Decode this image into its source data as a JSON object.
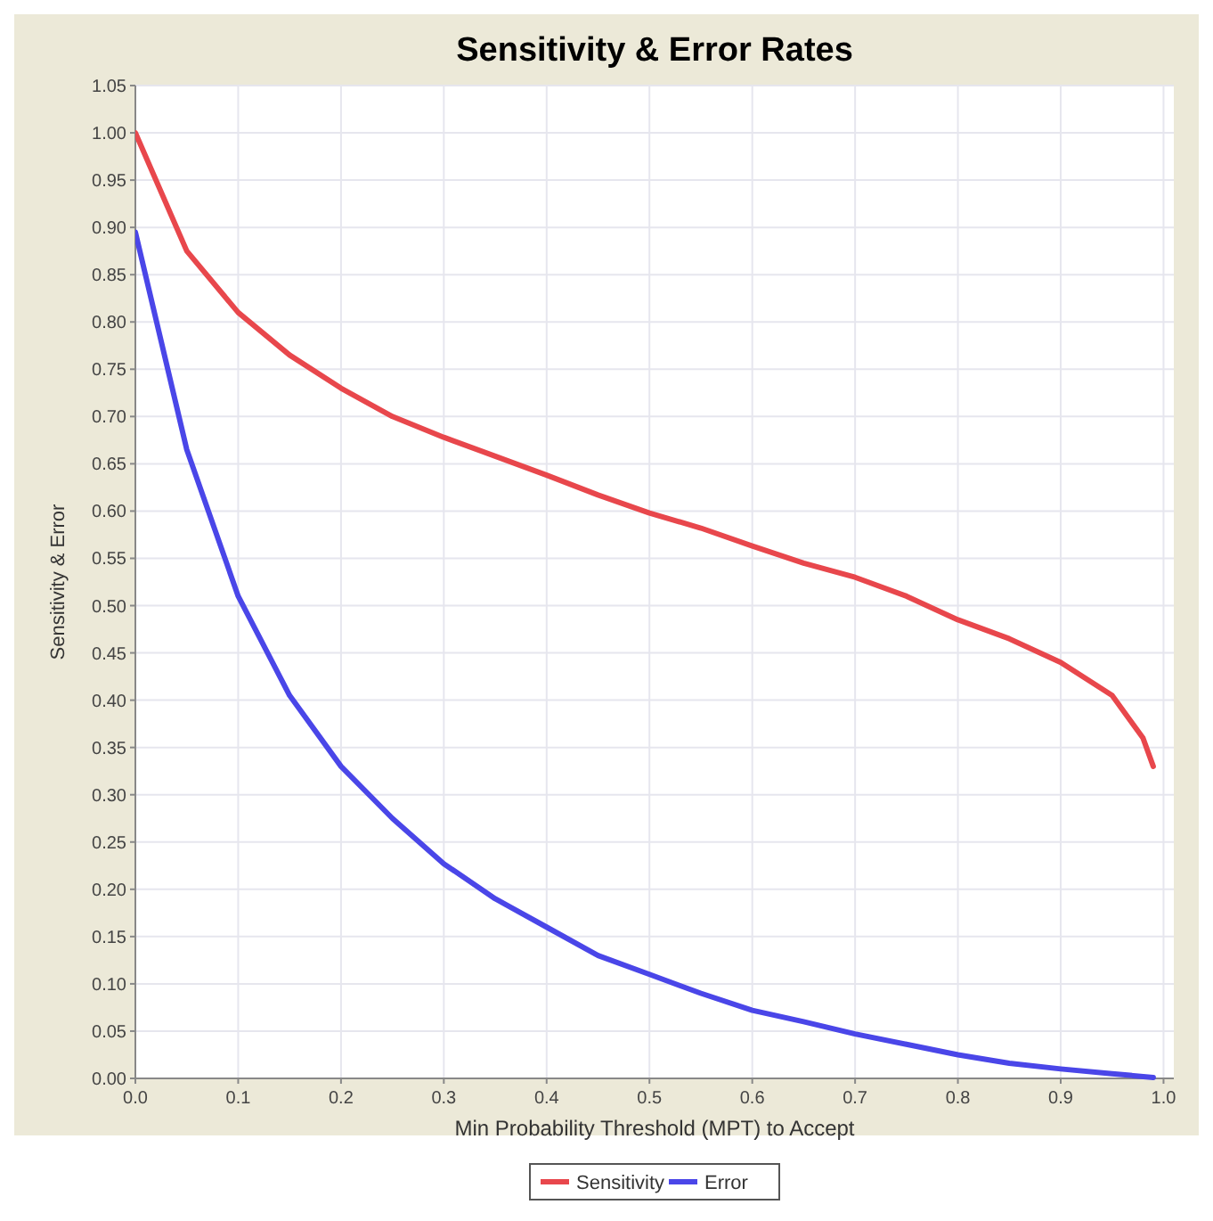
{
  "chart_data": {
    "type": "line",
    "title": "Sensitivity & Error Rates",
    "xlabel": "Min Probability Threshold (MPT) to Accept",
    "ylabel": "Sensitivity & Error",
    "xlim": [
      0,
      1.01
    ],
    "xticks": [
      {
        "value": 0,
        "label": "0.0"
      },
      0.1,
      0.2,
      0.3,
      0.4,
      0.5,
      0.6,
      0.7,
      0.8,
      0.9,
      {
        "value": 1,
        "label": "1.0"
      }
    ],
    "ylim": [
      0,
      1.05
    ],
    "yticks": [
      {
        "value": 0,
        "label": "0.00"
      },
      {
        "value": 0.05,
        "label": "0.05"
      },
      {
        "value": 0.1,
        "label": "0.10"
      },
      {
        "value": 0.15,
        "label": "0.15"
      },
      {
        "value": 0.2,
        "label": "0.20"
      },
      {
        "value": 0.25,
        "label": "0.25"
      },
      {
        "value": 0.3,
        "label": "0.30"
      },
      {
        "value": 0.35,
        "label": "0.35"
      },
      {
        "value": 0.4,
        "label": "0.40"
      },
      {
        "value": 0.45,
        "label": "0.45"
      },
      {
        "value": 0.5,
        "label": "0.50"
      },
      {
        "value": 0.55,
        "label": "0.55"
      },
      {
        "value": 0.6,
        "label": "0.60"
      },
      {
        "value": 0.65,
        "label": "0.65"
      },
      {
        "value": 0.7,
        "label": "0.70"
      },
      {
        "value": 0.75,
        "label": "0.75"
      },
      {
        "value": 0.8,
        "label": "0.80"
      },
      {
        "value": 0.85,
        "label": "0.85"
      },
      {
        "value": 0.9,
        "label": "0.90"
      },
      {
        "value": 0.95,
        "label": "0.95"
      },
      {
        "value": 1,
        "label": "1.00"
      },
      {
        "value": 1.05,
        "label": "1.05"
      }
    ],
    "grid": true,
    "legend": "bottom",
    "marker": "none",
    "series": [
      {
        "name": "Sensitivity",
        "color": "#e8474c",
        "x": [
          0,
          0.05,
          0.1,
          0.15,
          0.2,
          0.25,
          0.3,
          0.35,
          0.4,
          0.45,
          0.5,
          0.55,
          0.6,
          0.65,
          0.7,
          0.75,
          0.8,
          0.85,
          0.9,
          0.95,
          0.98,
          0.99
        ],
        "values": [
          1.0,
          0.875,
          0.81,
          0.765,
          0.73,
          0.7,
          0.678,
          0.658,
          0.638,
          0.617,
          0.598,
          0.582,
          0.563,
          0.545,
          0.53,
          0.51,
          0.485,
          0.465,
          0.44,
          0.405,
          0.36,
          0.33
        ]
      },
      {
        "name": "Error",
        "color": "#4a46e8",
        "x": [
          0,
          0.05,
          0.1,
          0.15,
          0.2,
          0.25,
          0.3,
          0.35,
          0.4,
          0.45,
          0.5,
          0.55,
          0.6,
          0.65,
          0.7,
          0.75,
          0.8,
          0.85,
          0.9,
          0.95,
          0.99
        ],
        "values": [
          0.895,
          0.665,
          0.51,
          0.405,
          0.33,
          0.275,
          0.227,
          0.19,
          0.16,
          0.13,
          0.11,
          0.09,
          0.072,
          0.06,
          0.047,
          0.036,
          0.025,
          0.016,
          0.01,
          0.005,
          0.001
        ]
      }
    ]
  }
}
